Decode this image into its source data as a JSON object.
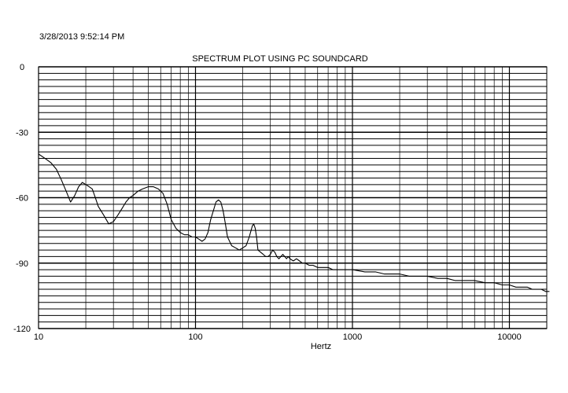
{
  "timestamp": "3/28/2013 9:52:14 PM",
  "chart_data": {
    "type": "line",
    "title": "SPECTRUM PLOT USING PC SOUNDCARD",
    "xlabel": "Hertz",
    "ylabel": "",
    "xscale": "log",
    "xlim": [
      10,
      18000
    ],
    "ylim": [
      -120,
      0
    ],
    "grid": true,
    "x_ticks": [
      {
        "value": 10,
        "label": "10"
      },
      {
        "value": 100,
        "label": "100"
      },
      {
        "value": 1000,
        "label": "1000"
      },
      {
        "value": 10000,
        "label": "10000"
      }
    ],
    "y_ticks": [
      {
        "value": 0,
        "label": "0"
      },
      {
        "value": -30,
        "label": "-30"
      },
      {
        "value": -60,
        "label": "-60"
      },
      {
        "value": -90,
        "label": "-90"
      },
      {
        "value": -120,
        "label": "-120"
      }
    ],
    "series": [
      {
        "color": "#000000",
        "x": [
          10,
          11,
          12,
          13,
          14,
          15,
          16,
          17,
          18,
          19,
          20,
          21,
          22,
          23,
          24,
          26,
          28,
          30,
          32,
          34,
          36,
          38,
          40,
          43,
          46,
          50,
          54,
          58,
          62,
          66,
          70,
          75,
          80,
          85,
          90,
          95,
          100,
          105,
          110,
          115,
          120,
          125,
          130,
          135,
          140,
          145,
          150,
          155,
          160,
          170,
          180,
          190,
          200,
          210,
          220,
          230,
          235,
          240,
          245,
          250,
          260,
          270,
          280,
          290,
          300,
          310,
          320,
          330,
          340,
          350,
          360,
          370,
          380,
          390,
          400,
          420,
          440,
          460,
          480,
          500,
          530,
          560,
          600,
          650,
          700,
          750,
          800,
          900,
          1000,
          1200,
          1400,
          1600,
          1800,
          2000,
          2300,
          2600,
          3000,
          3500,
          4000,
          4500,
          5000,
          6000,
          7000,
          8000,
          9000,
          10000,
          11000,
          12000,
          13000,
          14000,
          15000,
          16000,
          17000,
          18000
        ],
        "y": [
          -40,
          -42,
          -44,
          -47,
          -52,
          -57,
          -62,
          -59,
          -55,
          -53,
          -54,
          -55,
          -56,
          -60,
          -64,
          -68,
          -72,
          -71,
          -68,
          -65,
          -62,
          -60,
          -59,
          -57,
          -56,
          -55,
          -55,
          -56,
          -58,
          -63,
          -70,
          -74,
          -76,
          -77,
          -77,
          -78,
          -78,
          -79,
          -80,
          -79,
          -76,
          -70,
          -66,
          -62,
          -61,
          -62,
          -66,
          -72,
          -78,
          -82,
          -83,
          -84,
          -83,
          -82,
          -78,
          -73,
          -72,
          -74,
          -78,
          -84,
          -85,
          -86,
          -87,
          -87,
          -86,
          -84,
          -85,
          -87,
          -88,
          -87,
          -86,
          -87,
          -88,
          -87,
          -88,
          -89,
          -88,
          -89,
          -90,
          -90,
          -91,
          -91,
          -92,
          -92,
          -92,
          -93,
          -93,
          -93,
          -93,
          -94,
          -94,
          -95,
          -95,
          -95,
          -96,
          -96,
          -96,
          -97,
          -97,
          -98,
          -98,
          -98,
          -99,
          -99,
          -100,
          -100,
          -101,
          -101,
          -101,
          -102,
          -102,
          -102,
          -103,
          -103
        ]
      }
    ]
  }
}
